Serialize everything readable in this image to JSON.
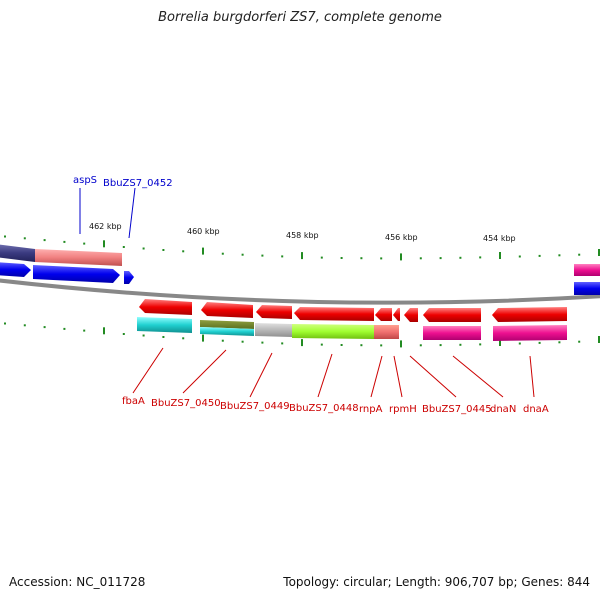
{
  "title": "Borrelia burgdorferi ZS7, complete genome",
  "footer": {
    "accession": "Accession: NC_011728",
    "summary": "Topology: circular; Length: 906,707 bp; Genes: 844"
  },
  "colors": {
    "forward_label": "#0000cc",
    "reverse_label": "#cc0000",
    "tick": "#228b22",
    "backbone": "#888888"
  },
  "ticks": {
    "labels": [
      {
        "id": "t462",
        "text": "462 kbp"
      },
      {
        "id": "t460",
        "text": "460 kbp"
      },
      {
        "id": "t458",
        "text": "458 kbp"
      },
      {
        "id": "t456",
        "text": "456 kbp"
      },
      {
        "id": "t454",
        "text": "454 kbp"
      }
    ]
  },
  "genes": [
    {
      "id": "aspS",
      "label": "aspS",
      "strand": "forward"
    },
    {
      "id": "BbuZS7_0452",
      "label": "BbuZS7_0452",
      "strand": "forward"
    },
    {
      "id": "fbaA",
      "label": "fbaA",
      "strand": "reverse"
    },
    {
      "id": "BbuZS7_0450",
      "label": "BbuZS7_0450",
      "strand": "reverse"
    },
    {
      "id": "BbuZS7_0449",
      "label": "BbuZS7_0449",
      "strand": "reverse"
    },
    {
      "id": "BbuZS7_0448",
      "label": "BbuZS7_0448",
      "strand": "reverse"
    },
    {
      "id": "rnpA",
      "label": "rnpA",
      "strand": "reverse"
    },
    {
      "id": "rpmH",
      "label": "rpmH",
      "strand": "reverse"
    },
    {
      "id": "BbuZS7_0445",
      "label": "BbuZS7_0445",
      "strand": "reverse"
    },
    {
      "id": "dnaN",
      "label": "dnaN",
      "strand": "reverse"
    },
    {
      "id": "dnaA",
      "label": "dnaA",
      "strand": "reverse"
    }
  ]
}
